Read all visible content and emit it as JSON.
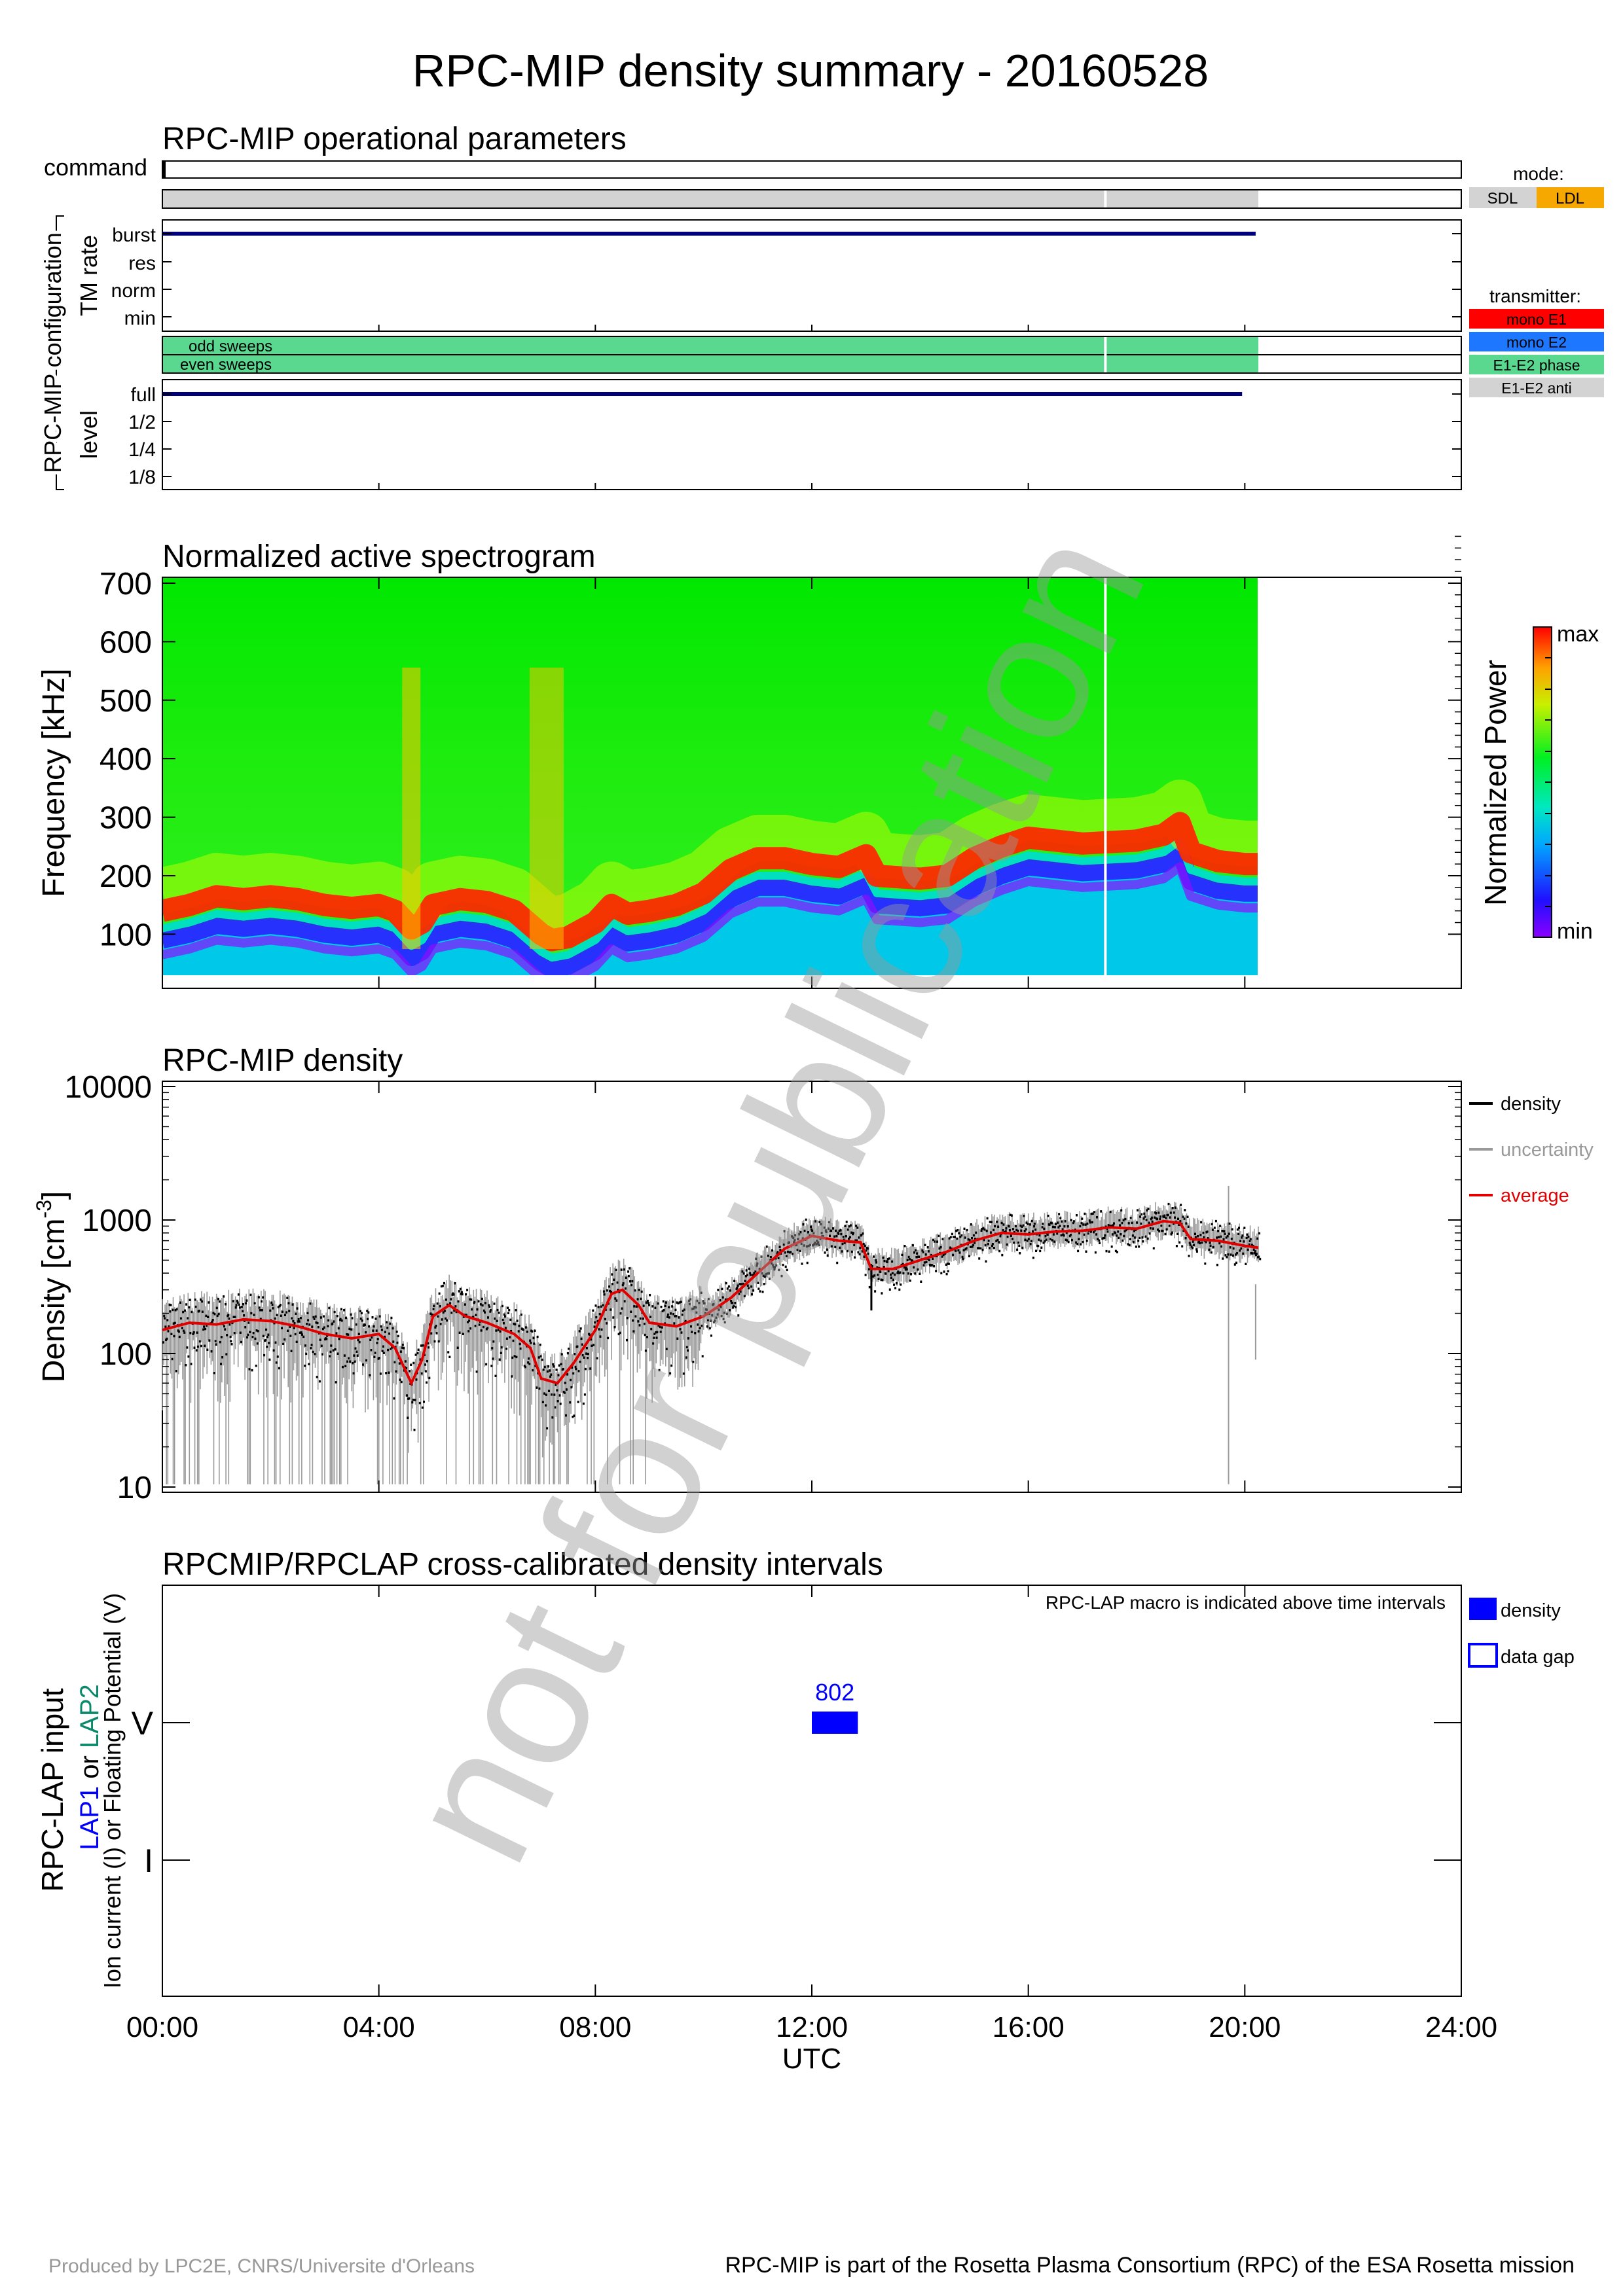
{
  "title": "RPC-MIP density summary - 20160528",
  "footer": {
    "left": "Produced by LPC2E, CNRS/Universite d'Orleans",
    "right": "RPC-MIP is part of the Rosetta Plasma Consortium (RPC) of the ESA Rosetta mission"
  },
  "watermark": "not for publication",
  "x_axis": {
    "label": "UTC",
    "range_hours": [
      0,
      24
    ],
    "ticks": [
      "00:00",
      "04:00",
      "08:00",
      "12:00",
      "16:00",
      "20:00",
      "24:00"
    ]
  },
  "operational": {
    "title": "RPC-MIP operational parameters",
    "command_label": "command",
    "group_label": "RPC-MIP configuration",
    "tm_rate_label": "TM rate",
    "tm_rate_levels": [
      "burst",
      "res",
      "norm",
      "min"
    ],
    "level_label": "level",
    "level_levels": [
      "full",
      "1/2",
      "1/4",
      "1/8"
    ],
    "mode_legend": {
      "title": "mode:",
      "items": [
        {
          "label": "SDL",
          "color": "#d3d3d3"
        },
        {
          "label": "LDL",
          "color": "#f6a800"
        }
      ]
    },
    "transmitter_legend": {
      "title": "transmitter:",
      "items": [
        {
          "label": "mono E1",
          "color": "#ff0000"
        },
        {
          "label": "mono E2",
          "color": "#1e78ff"
        },
        {
          "label": "E1-E2 phase",
          "color": "#5ad890"
        },
        {
          "label": "E1-E2 anti",
          "color": "#d3d3d3"
        }
      ]
    },
    "odd_sweeps_label": "odd sweeps",
    "even_sweeps_label": "even sweeps",
    "coverage_end_hour": 20.25,
    "gap_hour": 17.4,
    "tm_rate_value": "burst",
    "tm_rate_end_hour": 20.2,
    "level_value": "full",
    "level_end_hour": 19.95,
    "mode_value": "SDL",
    "transmitter_value": "E1-E2 phase"
  },
  "chart_data": [
    {
      "type": "heatmap",
      "title": "Normalized active spectrogram",
      "ylabel": "Frequency [kHz]",
      "ylim": [
        30,
        710
      ],
      "yticks": [
        100,
        200,
        300,
        400,
        500,
        600,
        700
      ],
      "colorbar_label": "Normalized Power",
      "colorbar_max": "max",
      "colorbar_min": "min",
      "data_end_hour": 20.25,
      "plasma_line_kHz": {
        "x": [
          0,
          0.5,
          1,
          1.5,
          2,
          2.5,
          3,
          3.5,
          4,
          4.3,
          4.6,
          4.8,
          5,
          5.5,
          6,
          6.5,
          7,
          7.2,
          7.5,
          8,
          8.3,
          8.6,
          9,
          9.5,
          10,
          10.5,
          11,
          11.5,
          12,
          12.5,
          13,
          13.2,
          14,
          14.5,
          15,
          15.5,
          16,
          17,
          18,
          18.5,
          18.8,
          19,
          19.5,
          20,
          20.25
        ],
        "y": [
          140,
          150,
          165,
          160,
          165,
          160,
          150,
          145,
          150,
          140,
          110,
          120,
          150,
          160,
          155,
          140,
          100,
          90,
          95,
          120,
          150,
          135,
          140,
          150,
          170,
          210,
          230,
          230,
          220,
          215,
          235,
          200,
          195,
          200,
          230,
          250,
          265,
          255,
          260,
          270,
          290,
          240,
          225,
          220,
          220
        ]
      }
    },
    {
      "type": "line",
      "title": "RPC-MIP density",
      "ylabel": "Density [cm",
      "ylabel_sup": "-3",
      "ylabel_end": "]",
      "yscale": "log",
      "ylim": [
        10,
        10000
      ],
      "yticks": [
        "10",
        "100",
        "1000",
        "10000"
      ],
      "legend": [
        "density",
        "uncertainty",
        "average"
      ],
      "legend_position": "right",
      "series": [
        {
          "name": "average",
          "x": [
            0,
            0.5,
            1,
            1.5,
            2,
            2.5,
            3,
            3.5,
            4,
            4.3,
            4.6,
            4.8,
            5,
            5.3,
            5.6,
            6,
            6.5,
            6.8,
            7,
            7.3,
            7.6,
            8,
            8.3,
            8.5,
            8.8,
            9,
            9.5,
            10,
            10.5,
            11,
            11.5,
            12,
            12.5,
            12.9,
            13.1,
            13.5,
            14,
            14.5,
            15,
            15.5,
            16,
            16.5,
            17,
            17.5,
            18,
            18.5,
            18.8,
            19,
            19.5,
            20,
            20.25
          ],
          "y": [
            150,
            170,
            165,
            180,
            175,
            160,
            140,
            130,
            140,
            110,
            60,
            90,
            190,
            230,
            190,
            170,
            140,
            110,
            65,
            60,
            85,
            150,
            280,
            300,
            230,
            170,
            160,
            190,
            260,
            400,
            610,
            760,
            700,
            680,
            430,
            430,
            500,
            580,
            700,
            800,
            780,
            820,
            830,
            880,
            860,
            980,
            950,
            720,
            700,
            640,
            620
          ]
        }
      ]
    },
    {
      "type": "bar",
      "title": "RPCMIP/RPCLAP cross-calibrated density intervals",
      "ylabel": "RPC-LAP input",
      "ylabel_lap1": "LAP1",
      "ylabel_or": " or ",
      "ylabel_lap2": "LAP2",
      "ylabel_sub": "Ion current (I) or Floating Potential (V)",
      "ycategories": [
        "V",
        "I"
      ],
      "note": "RPC-LAP macro is indicated above time intervals",
      "legend": [
        "density",
        "data gap"
      ],
      "intervals": [
        {
          "start_hour": 12.0,
          "end_hour": 12.85,
          "category": "V",
          "macro": "802"
        }
      ]
    }
  ]
}
